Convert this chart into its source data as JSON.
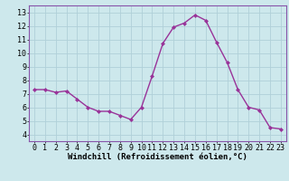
{
  "x": [
    0,
    1,
    2,
    3,
    4,
    5,
    6,
    7,
    8,
    9,
    10,
    11,
    12,
    13,
    14,
    15,
    16,
    17,
    18,
    19,
    20,
    21,
    22,
    23
  ],
  "y": [
    7.3,
    7.3,
    7.1,
    7.2,
    6.6,
    6.0,
    5.7,
    5.7,
    5.4,
    5.1,
    6.0,
    8.3,
    10.7,
    11.9,
    12.2,
    12.8,
    12.4,
    10.8,
    9.3,
    7.3,
    6.0,
    5.8,
    4.5,
    4.4
  ],
  "line_color": "#993399",
  "marker": "D",
  "markersize": 2.0,
  "linewidth": 1.0,
  "xlabel": "Windchill (Refroidissement éolien,°C)",
  "xlabel_fontsize": 6.5,
  "xlim": [
    -0.5,
    23.5
  ],
  "ylim": [
    3.5,
    13.5
  ],
  "yticks": [
    4,
    5,
    6,
    7,
    8,
    9,
    10,
    11,
    12,
    13
  ],
  "xticks": [
    0,
    1,
    2,
    3,
    4,
    5,
    6,
    7,
    8,
    9,
    10,
    11,
    12,
    13,
    14,
    15,
    16,
    17,
    18,
    19,
    20,
    21,
    22,
    23
  ],
  "background_color": "#cde8ec",
  "grid_color": "#b0d0d8",
  "tick_fontsize": 6.0,
  "fig_width": 3.2,
  "fig_height": 2.0,
  "dpi": 100
}
